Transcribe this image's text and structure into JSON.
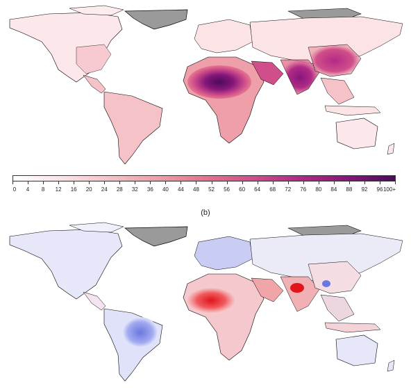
{
  "panel_b_label": "(b)",
  "colorbar": {
    "ticks": [
      "0",
      "4",
      "8",
      "12",
      "16",
      "20",
      "24",
      "28",
      "32",
      "36",
      "40",
      "44",
      "48",
      "52",
      "56",
      "60",
      "64",
      "68",
      "72",
      "76",
      "80",
      "84",
      "88",
      "92",
      "96",
      "100+"
    ],
    "gradient": [
      "#ffffff",
      "#fbe3e6",
      "#f5c2c8",
      "#ee9faa",
      "#e3748e",
      "#d04f8a",
      "#b12a86",
      "#86177a",
      "#4b0a5c"
    ]
  },
  "colors": {
    "no_data": "#9a9a9a",
    "land_outline": "#000000",
    "diverging_blue": "#6a77e0",
    "diverging_red": "#e1141c",
    "neutral_pale_blue": "#e6e8f9"
  }
}
